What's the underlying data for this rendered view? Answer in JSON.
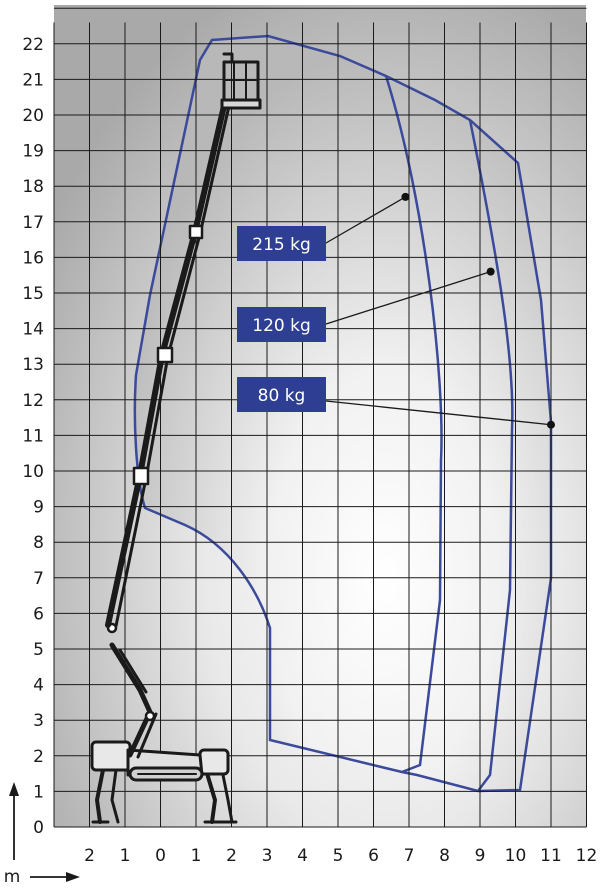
{
  "diagram": {
    "type": "working-envelope",
    "x_axis": {
      "ticks": [
        "2",
        "1",
        "0",
        "1",
        "2",
        "3",
        "4",
        "5",
        "6",
        "7",
        "8",
        "9",
        "10",
        "11",
        "12"
      ],
      "values": [
        -2,
        -1,
        0,
        1,
        2,
        3,
        4,
        5,
        6,
        7,
        8,
        9,
        10,
        11,
        12
      ]
    },
    "y_axis": {
      "ticks": [
        "0",
        "1",
        "2",
        "3",
        "4",
        "5",
        "6",
        "7",
        "8",
        "9",
        "10",
        "11",
        "12",
        "13",
        "14",
        "15",
        "16",
        "17",
        "18",
        "19",
        "20",
        "21",
        "22"
      ],
      "unit": "m"
    },
    "load_labels": [
      {
        "text": "215 kg",
        "point": [
          6.9,
          17.7
        ]
      },
      {
        "text": "120 kg",
        "point": [
          9.3,
          15.6
        ]
      },
      {
        "text": "80 kg",
        "point": [
          11.0,
          11.3
        ]
      }
    ],
    "colors": {
      "envelope": "#3b4a9a",
      "label_bg": "#2e3f93",
      "grid": "#1a1a1a"
    }
  }
}
